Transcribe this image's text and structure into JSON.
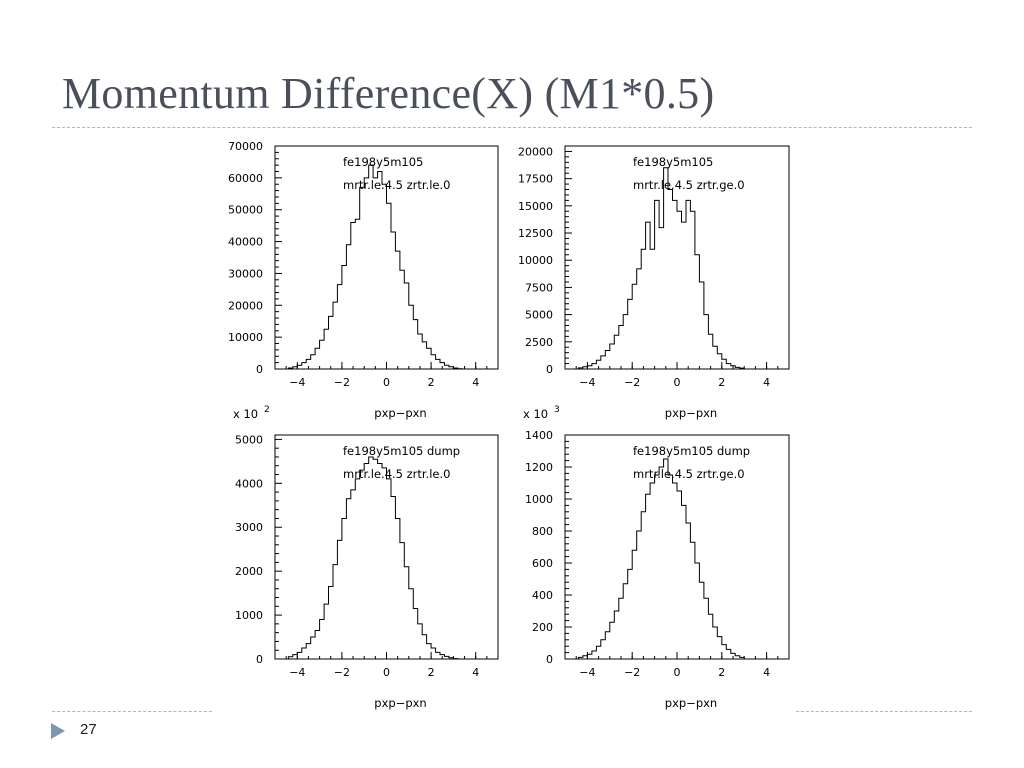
{
  "slide": {
    "title": "Momentum Difference(X) (M1*0.5)",
    "page_number": "27",
    "colors": {
      "title": "#4a4f5c",
      "rule": "#a9b8c8",
      "arrow": "#7f96b2",
      "plot": "#000000"
    }
  },
  "chart_data": [
    {
      "type": "histogram",
      "legend": [
        "fe198y5m105",
        "mrtr.le.4.5 zrtr.le.0"
      ],
      "xlabel": "pxp−pxn",
      "ylabel": "",
      "exponent": "",
      "xlim": [
        -5,
        5
      ],
      "ylim": [
        0,
        70000
      ],
      "xticks": [
        -4,
        -2,
        0,
        2,
        4
      ],
      "yticks": [
        0,
        10000,
        20000,
        30000,
        40000,
        50000,
        60000,
        70000
      ],
      "bin_width": 0.2,
      "x_start": -4.6,
      "values": [
        0,
        300,
        700,
        1200,
        2000,
        3000,
        4500,
        6500,
        9000,
        12500,
        16500,
        21000,
        26500,
        32500,
        39000,
        46000,
        47000,
        57000,
        60000,
        64000,
        60000,
        62000,
        58000,
        52000,
        43000,
        37000,
        31000,
        27000,
        20000,
        15500,
        11000,
        8500,
        6500,
        4500,
        3000,
        2000,
        1200,
        700,
        300,
        100,
        0,
        0,
        0,
        0,
        0,
        0,
        0
      ]
    },
    {
      "type": "histogram",
      "legend": [
        "fe198y5m105",
        "mrtr.le.4.5 zrtr.ge.0"
      ],
      "xlabel": "pxp−pxn",
      "ylabel": "",
      "exponent": "",
      "xlim": [
        -5,
        5
      ],
      "ylim": [
        0,
        20500
      ],
      "xticks": [
        -4,
        -2,
        0,
        2,
        4
      ],
      "yticks": [
        0,
        2500,
        5000,
        7500,
        10000,
        12500,
        15000,
        17500,
        20000
      ],
      "bin_width": 0.2,
      "x_start": -4.6,
      "values": [
        0,
        100,
        200,
        300,
        500,
        800,
        1200,
        1700,
        2300,
        3100,
        4000,
        5000,
        6400,
        7800,
        9200,
        11000,
        13500,
        11000,
        15500,
        13000,
        18500,
        16500,
        15500,
        14500,
        13500,
        15500,
        14500,
        10500,
        8000,
        5000,
        3200,
        2100,
        1400,
        900,
        500,
        300,
        150,
        80,
        0,
        0,
        0,
        0,
        0,
        0,
        0,
        0,
        0
      ]
    },
    {
      "type": "histogram",
      "legend": [
        "fe198y5m105 dump",
        "mrtr.le.4.5 zrtr.le.0"
      ],
      "xlabel": "pxp−pxn",
      "ylabel": "x 10",
      "exponent": "2",
      "xlim": [
        -5,
        5
      ],
      "ylim": [
        0,
        5100
      ],
      "xticks": [
        -4,
        -2,
        0,
        2,
        4
      ],
      "yticks": [
        0,
        1000,
        2000,
        3000,
        4000,
        5000
      ],
      "bin_width": 0.2,
      "x_start": -4.6,
      "values": [
        0,
        50,
        100,
        150,
        250,
        350,
        500,
        650,
        900,
        1250,
        1650,
        2150,
        2700,
        3200,
        3650,
        3850,
        4100,
        4300,
        4450,
        4600,
        4550,
        4450,
        4350,
        4100,
        3700,
        3200,
        2650,
        2100,
        1600,
        1150,
        800,
        550,
        350,
        250,
        150,
        100,
        60,
        30,
        10,
        0,
        0,
        0,
        0,
        0,
        0,
        0,
        0
      ]
    },
    {
      "type": "histogram",
      "legend": [
        "fe198y5m105 dump",
        "mrtr.le.4.5 zrtr.ge.0"
      ],
      "xlabel": "pxp−pxn",
      "ylabel": "x 10",
      "exponent": "3",
      "xlim": [
        -5,
        5
      ],
      "ylim": [
        0,
        1400
      ],
      "xticks": [
        -4,
        -2,
        0,
        2,
        4
      ],
      "yticks": [
        0,
        200,
        400,
        600,
        800,
        1000,
        1200,
        1400
      ],
      "bin_width": 0.2,
      "x_start": -4.6,
      "values": [
        0,
        10,
        20,
        30,
        50,
        80,
        120,
        170,
        230,
        300,
        380,
        470,
        560,
        680,
        800,
        920,
        1030,
        1100,
        1150,
        1200,
        1250,
        1150,
        1100,
        1050,
        960,
        850,
        730,
        600,
        480,
        380,
        280,
        200,
        140,
        90,
        60,
        35,
        20,
        10,
        0,
        0,
        0,
        0,
        0,
        0,
        0,
        0,
        0
      ]
    }
  ]
}
